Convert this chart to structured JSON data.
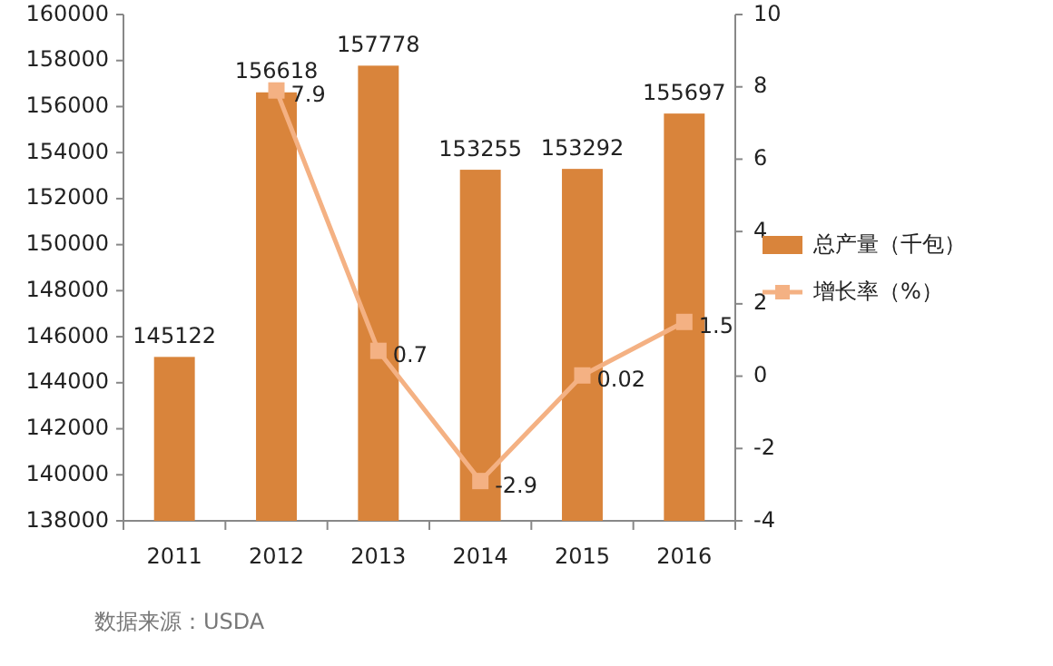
{
  "chart_data": {
    "type": "bar",
    "categories": [
      "2011",
      "2012",
      "2013",
      "2014",
      "2015",
      "2016"
    ],
    "series": [
      {
        "name": "总产量（千包）",
        "color": "#d9843b",
        "values": [
          145122,
          156618,
          157778,
          153255,
          153292,
          155697
        ]
      },
      {
        "name": "增长率（%）",
        "type": "line",
        "axis": "y2",
        "color": "#f4b183",
        "values": [
          null,
          7.9,
          0.7,
          -2.9,
          0.02,
          1.5
        ]
      }
    ],
    "ylim": [
      138000,
      160000
    ],
    "yticks": [
      138000,
      140000,
      142000,
      144000,
      146000,
      148000,
      150000,
      152000,
      154000,
      156000,
      158000,
      160000
    ],
    "y2lim": [
      -4,
      10
    ],
    "y2ticks": [
      -4,
      -2,
      0,
      2,
      4,
      6,
      8,
      10
    ],
    "data_labels": true,
    "marker": "square",
    "legend": "right",
    "grid": false,
    "annotations": [
      "数据来源：USDA"
    ]
  }
}
